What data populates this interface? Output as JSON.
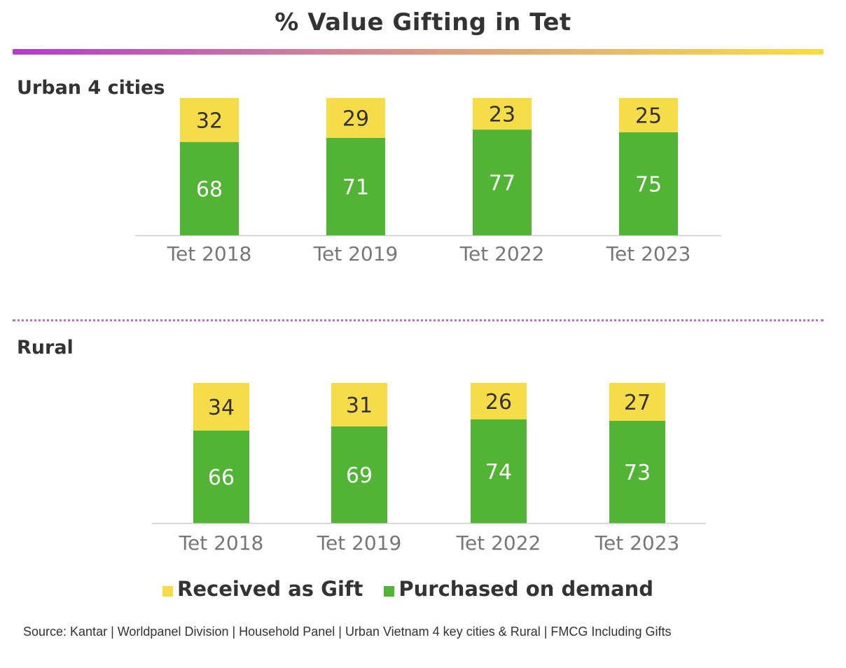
{
  "title": "% Value Gifting in Tet",
  "colors": {
    "gift": "#f7dc4a",
    "purchased": "#52b435",
    "axis": "#cccccc",
    "tick_text": "#777777"
  },
  "panels": [
    {
      "label": "Urban 4 cities"
    },
    {
      "label": "Rural"
    }
  ],
  "legend": {
    "gift": "Received as Gift",
    "purchased": "Purchased on demand"
  },
  "source": "Source: Kantar | Worldpanel Division | Household Panel | Urban Vietnam 4 key cities & Rural | FMCG Including Gifts",
  "chart_data": [
    {
      "type": "bar",
      "stacked": true,
      "title": "Urban 4 cities",
      "categories": [
        "Tet 2018",
        "Tet 2019",
        "Tet 2022",
        "Tet 2023"
      ],
      "series": [
        {
          "name": "Purchased on demand",
          "values": [
            68,
            71,
            77,
            75
          ]
        },
        {
          "name": "Received as Gift",
          "values": [
            32,
            29,
            23,
            25
          ]
        }
      ],
      "ylim": [
        0,
        100
      ]
    },
    {
      "type": "bar",
      "stacked": true,
      "title": "Rural",
      "categories": [
        "Tet 2018",
        "Tet 2019",
        "Tet 2022",
        "Tet 2023"
      ],
      "series": [
        {
          "name": "Purchased on demand",
          "values": [
            66,
            69,
            74,
            73
          ]
        },
        {
          "name": "Received as Gift",
          "values": [
            34,
            31,
            26,
            27
          ]
        }
      ],
      "ylim": [
        0,
        100
      ]
    }
  ]
}
